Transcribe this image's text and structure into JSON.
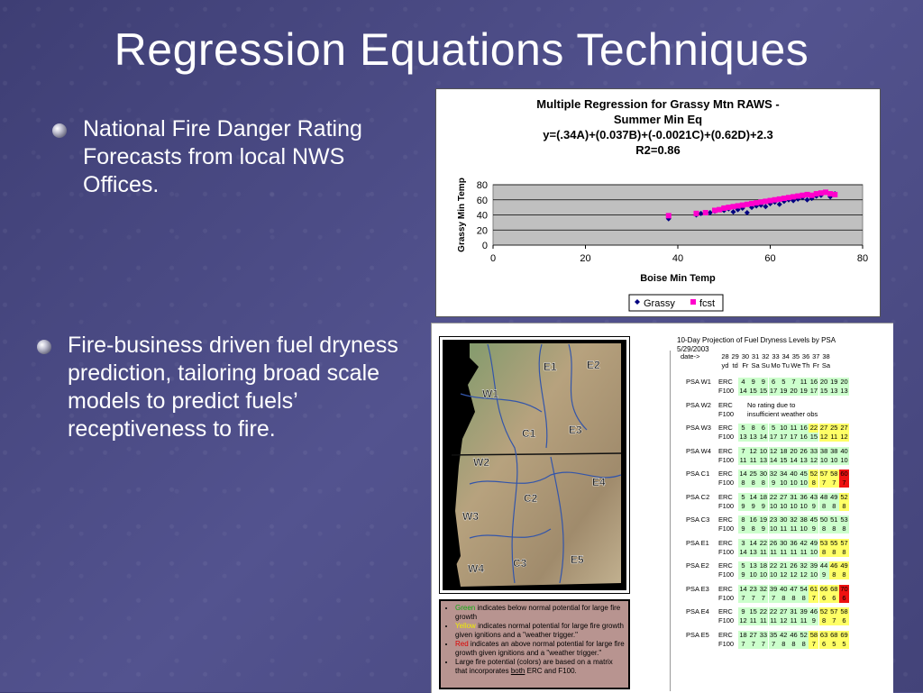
{
  "slide": {
    "title": "Regression Equations Techniques",
    "bullets": [
      "National Fire Danger Rating Forecasts from local NWS Offices.",
      "Fire-business driven fuel dryness prediction, tailoring broad scale models to predict fuels’ receptiveness to fire."
    ]
  },
  "chart_data": {
    "type": "scatter",
    "title": [
      "Multiple Regression for Grassy Mtn RAWS -",
      "Summer Min Eq",
      "y=(.34A)+(0.037B)+(-0.0021C)+(0.62D)+2.3",
      "R2=0.86"
    ],
    "xlabel": "Boise Min Temp",
    "ylabel": "Grassy Min Temp",
    "xlim": [
      0,
      80
    ],
    "ylim": [
      0,
      80
    ],
    "xticks": [
      "0",
      "20",
      "40",
      "60",
      "80"
    ],
    "yticks": [
      "0",
      "20",
      "40",
      "60",
      "80"
    ],
    "grid": true,
    "legend": "bottom",
    "series": [
      {
        "name": "Grassy",
        "color": "#000080",
        "marker": "diamond",
        "points": [
          [
            38,
            35
          ],
          [
            44,
            40
          ],
          [
            45,
            42
          ],
          [
            47,
            43
          ],
          [
            48,
            45
          ],
          [
            50,
            46
          ],
          [
            51,
            48
          ],
          [
            52,
            44
          ],
          [
            53,
            47
          ],
          [
            54,
            49
          ],
          [
            55,
            43
          ],
          [
            56,
            50
          ],
          [
            57,
            52
          ],
          [
            58,
            53
          ],
          [
            59,
            51
          ],
          [
            60,
            55
          ],
          [
            61,
            57
          ],
          [
            62,
            54
          ],
          [
            63,
            58
          ],
          [
            64,
            60
          ],
          [
            65,
            59
          ],
          [
            66,
            61
          ],
          [
            67,
            63
          ],
          [
            68,
            60
          ],
          [
            69,
            62
          ],
          [
            70,
            65
          ],
          [
            71,
            66
          ],
          [
            72,
            70
          ],
          [
            73,
            64
          ],
          [
            74,
            68
          ]
        ]
      },
      {
        "name": "fcst",
        "color": "#ff00cc",
        "marker": "square",
        "points": [
          [
            38,
            39
          ],
          [
            44,
            42
          ],
          [
            46,
            43
          ],
          [
            48,
            46
          ],
          [
            49,
            47
          ],
          [
            50,
            49
          ],
          [
            51,
            50
          ],
          [
            52,
            51
          ],
          [
            53,
            52
          ],
          [
            54,
            53
          ],
          [
            55,
            54
          ],
          [
            56,
            55
          ],
          [
            57,
            56
          ],
          [
            58,
            57
          ],
          [
            59,
            58
          ],
          [
            60,
            59
          ],
          [
            61,
            60
          ],
          [
            62,
            61
          ],
          [
            63,
            62
          ],
          [
            64,
            63
          ],
          [
            65,
            64
          ],
          [
            66,
            65
          ],
          [
            67,
            66
          ],
          [
            68,
            67
          ],
          [
            69,
            66
          ],
          [
            70,
            68
          ],
          [
            71,
            69
          ],
          [
            72,
            70
          ],
          [
            73,
            68
          ],
          [
            74,
            67
          ]
        ]
      }
    ]
  },
  "map": {
    "zones": [
      "E1",
      "E2",
      "W1",
      "C1",
      "E3",
      "W2",
      "C2",
      "E4",
      "W3",
      "E5",
      "C3",
      "W4"
    ]
  },
  "legend": {
    "green_word": "Green",
    "green_text": " indicates below normal potential for large fire growth",
    "yellow_word": "Yellow",
    "yellow_text": " indicates normal potential for large fire growth given ignitions and a \"weather trigger.\"",
    "red_word": "Red",
    "red_text": " indicates an above normal potential for large fire growth given ignitions and a \"weather trigger.\"",
    "matrix_text_a": "Large fire potential (colors) are based on a matrix that incorporates ",
    "matrix_both": "both",
    "matrix_text_b": " ERC and F100."
  },
  "projection": {
    "title": "10-Day Projection of Fuel Dryness Levels by PSA",
    "date": "5/29/2003",
    "date_label": "date->",
    "days": [
      "28",
      "29",
      "30",
      "31",
      "32",
      "33",
      "34",
      "35",
      "36",
      "37",
      "38"
    ],
    "dows": [
      "yd",
      "td",
      "Fr",
      "Sa",
      "Su",
      "Mo",
      "Tu",
      "We",
      "Th",
      "Fr",
      "Sa"
    ],
    "rows": [
      {
        "psa": "PSA W1",
        "erc": [
          "4",
          "9",
          "9",
          "6",
          "5",
          "7",
          "11",
          "16",
          "20",
          "19",
          "20"
        ],
        "f100": [
          "14",
          "15",
          "15",
          "17",
          "19",
          "20",
          "19",
          "17",
          "15",
          "13",
          "13"
        ],
        "ec": "ggggggggggg",
        "fc": "ggggggggggg"
      },
      {
        "psa": "PSA W2",
        "note": [
          "No rating due to",
          "insufficient weather obs"
        ]
      },
      {
        "psa": "PSA W3",
        "erc": [
          "5",
          "8",
          "6",
          "5",
          "10",
          "11",
          "16",
          "22",
          "27",
          "25",
          "27"
        ],
        "f100": [
          "13",
          "13",
          "14",
          "17",
          "17",
          "17",
          "16",
          "15",
          "12",
          "11",
          "12"
        ],
        "ec": "gggggggyyyy",
        "fc": "ggggggggyyy"
      },
      {
        "psa": "PSA W4",
        "erc": [
          "7",
          "12",
          "10",
          "12",
          "18",
          "20",
          "26",
          "33",
          "38",
          "38",
          "40"
        ],
        "f100": [
          "11",
          "11",
          "13",
          "14",
          "15",
          "14",
          "13",
          "12",
          "10",
          "10",
          "10"
        ],
        "ec": "ggggggggggg",
        "fc": "ggggggggggg"
      },
      {
        "psa": "PSA C1",
        "erc": [
          "14",
          "25",
          "30",
          "32",
          "34",
          "40",
          "45",
          "52",
          "57",
          "58",
          "60"
        ],
        "f100": [
          "8",
          "8",
          "8",
          "9",
          "10",
          "10",
          "10",
          "8",
          "7",
          "7",
          "7"
        ],
        "ec": "gggggggyyyr",
        "fc": "gggggggyyyr"
      },
      {
        "psa": "PSA C2",
        "erc": [
          "5",
          "14",
          "18",
          "22",
          "27",
          "31",
          "36",
          "43",
          "48",
          "49",
          "52"
        ],
        "f100": [
          "9",
          "9",
          "9",
          "10",
          "10",
          "10",
          "10",
          "9",
          "8",
          "8",
          "8"
        ],
        "ec": "ggggggggggy",
        "fc": "ggggggggggy"
      },
      {
        "psa": "PSA C3",
        "erc": [
          "8",
          "16",
          "19",
          "23",
          "30",
          "32",
          "38",
          "45",
          "50",
          "51",
          "53"
        ],
        "f100": [
          "9",
          "8",
          "9",
          "10",
          "11",
          "11",
          "10",
          "9",
          "8",
          "8",
          "8"
        ],
        "ec": "ggggggggggg",
        "fc": "ggggggggggg"
      },
      {
        "psa": "PSA E1",
        "erc": [
          "3",
          "14",
          "22",
          "26",
          "30",
          "36",
          "42",
          "49",
          "53",
          "55",
          "57"
        ],
        "f100": [
          "14",
          "13",
          "11",
          "11",
          "11",
          "11",
          "11",
          "10",
          "8",
          "8",
          "8"
        ],
        "ec": "ggggggggyyy",
        "fc": "ggggggggyyy"
      },
      {
        "psa": "PSA E2",
        "erc": [
          "5",
          "13",
          "18",
          "22",
          "21",
          "26",
          "32",
          "39",
          "44",
          "46",
          "49"
        ],
        "f100": [
          "9",
          "10",
          "10",
          "10",
          "12",
          "12",
          "12",
          "10",
          "9",
          "8",
          "8"
        ],
        "ec": "gggggggggyy",
        "fc": "gggggggggyy"
      },
      {
        "psa": "PSA E3",
        "erc": [
          "14",
          "23",
          "32",
          "39",
          "40",
          "47",
          "54",
          "61",
          "66",
          "68",
          "70"
        ],
        "f100": [
          "7",
          "7",
          "7",
          "7",
          "8",
          "8",
          "8",
          "7",
          "6",
          "6",
          "6"
        ],
        "ec": "gggggggyyyr",
        "fc": "gggggggyyyr"
      },
      {
        "psa": "PSA E4",
        "erc": [
          "9",
          "15",
          "22",
          "22",
          "27",
          "31",
          "39",
          "46",
          "52",
          "57",
          "58"
        ],
        "f100": [
          "12",
          "11",
          "11",
          "11",
          "12",
          "11",
          "11",
          "9",
          "8",
          "7",
          "6"
        ],
        "ec": "ggggggggyyy",
        "fc": "ggggggggyyy"
      },
      {
        "psa": "PSA E5",
        "erc": [
          "18",
          "27",
          "33",
          "35",
          "42",
          "46",
          "52",
          "58",
          "63",
          "68",
          "69"
        ],
        "f100": [
          "7",
          "7",
          "7",
          "7",
          "8",
          "8",
          "8",
          "7",
          "6",
          "5",
          "5"
        ],
        "ec": "gggggggyyyy",
        "fc": "gggggggyyyy"
      }
    ]
  }
}
